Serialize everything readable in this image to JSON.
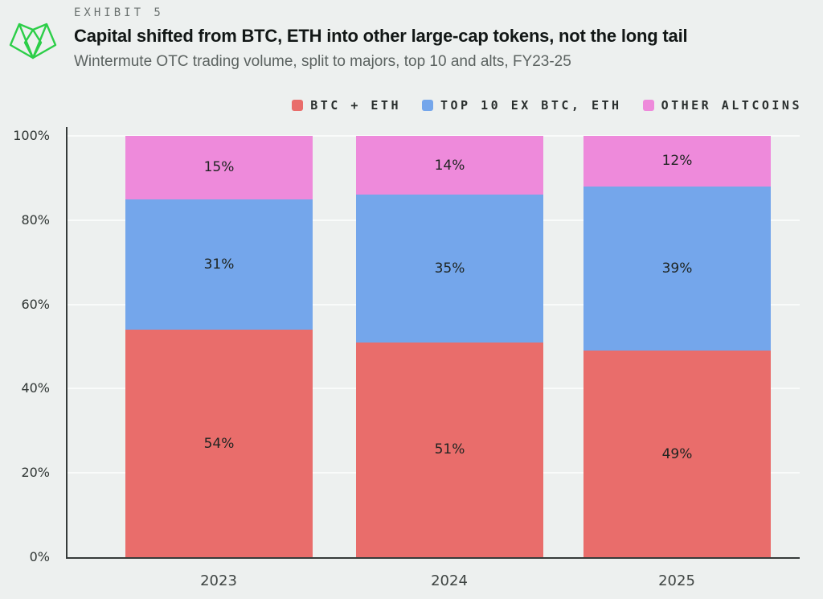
{
  "exhibit": {
    "label": "EXHIBIT 5"
  },
  "logo": {
    "icon": "wintermute-logo",
    "color": "#2CCE48"
  },
  "colors": {
    "background": "#EDF0EF",
    "axis": "#363B3A",
    "gridline": "#F9FBFA",
    "title_text": "#121716",
    "subtitle_text": "#5C6361",
    "exhibit_text": "#6A716F",
    "legend_text": "#2A2F2E",
    "segment_label_text": "#1E2421",
    "btc_eth": "#E96D6B",
    "top10_ex_btc_eth": "#74A6EB",
    "other_altcoins": "#EE8ADB",
    "logo_green": "#2CCE48"
  },
  "chart_data": {
    "type": "bar",
    "stacked": true,
    "title": "Capital shifted from BTC, ETH into other large-cap tokens, not the long tail",
    "subtitle": "Wintermute OTC trading volume, split to majors, top 10 and alts, FY23-25",
    "categories": [
      "2023",
      "2024",
      "2025"
    ],
    "series": [
      {
        "name": "BTC + ETH",
        "color": "#E96D6B",
        "values": [
          54,
          51,
          49
        ]
      },
      {
        "name": "TOP 10 EX BTC, ETH",
        "color": "#74A6EB",
        "values": [
          31,
          35,
          39
        ]
      },
      {
        "name": "OTHER ALTCOINS",
        "color": "#EE8ADB",
        "values": [
          15,
          14,
          12
        ]
      }
    ],
    "data_labels": true,
    "value_suffix": "%",
    "xlabel": "",
    "ylabel": "",
    "ylim": [
      0,
      100
    ],
    "yticks": [
      0,
      20,
      40,
      60,
      80,
      100
    ],
    "ytick_suffix": "%",
    "grid": true,
    "legend_position": "top-right"
  }
}
